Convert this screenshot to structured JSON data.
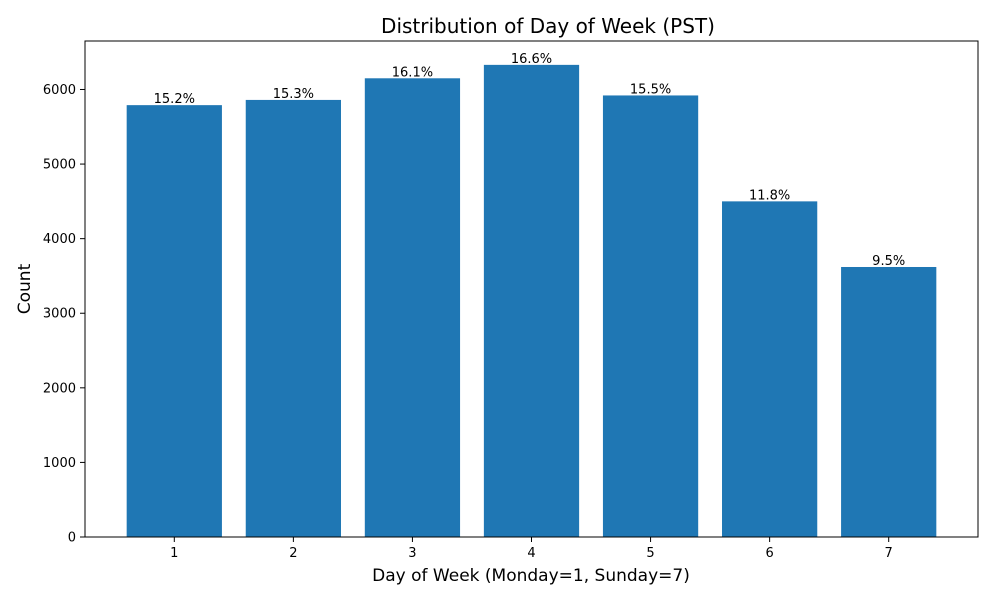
{
  "chart_data": {
    "type": "bar",
    "title": "Distribution of Day of Week (PST)",
    "xlabel": "Day of Week (Monday=1, Sunday=7)",
    "ylabel": "Count",
    "categories": [
      "1",
      "2",
      "3",
      "4",
      "5",
      "6",
      "7"
    ],
    "values": [
      5790,
      5860,
      6150,
      6330,
      5920,
      4500,
      3620
    ],
    "data_labels": [
      "15.2%",
      "15.3%",
      "16.1%",
      "16.6%",
      "15.5%",
      "11.8%",
      "9.5%"
    ],
    "ylim": [
      0,
      6650
    ],
    "yticks": [
      0,
      1000,
      2000,
      3000,
      4000,
      5000,
      6000
    ],
    "bar_color": "#1f77b4",
    "grid": false,
    "legend": "none"
  }
}
